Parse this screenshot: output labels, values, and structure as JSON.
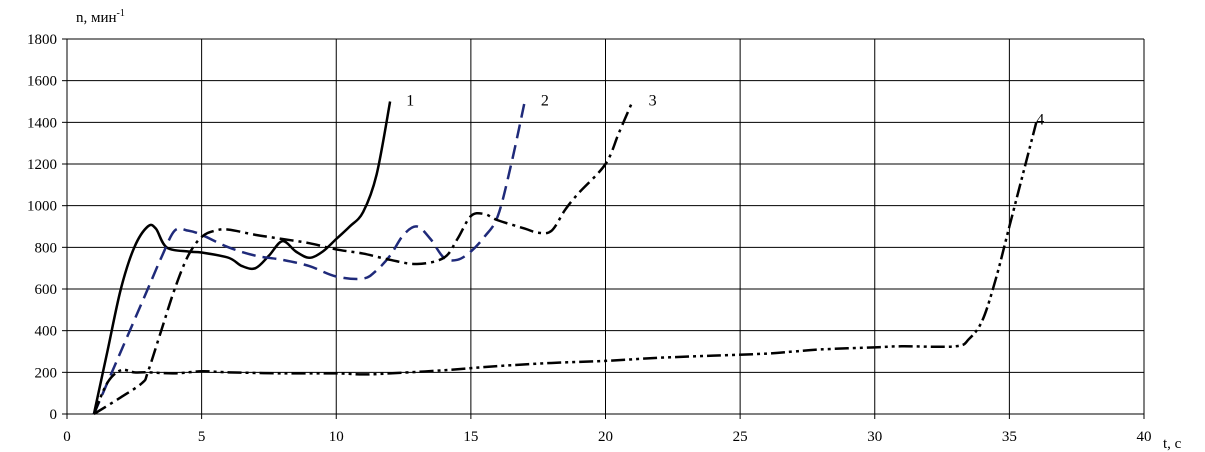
{
  "chart_data": {
    "type": "line",
    "xlabel": "t, с",
    "ylabel": "n, мин",
    "ylabel_exponent": "-1",
    "xlim": [
      0,
      40
    ],
    "ylim": [
      0,
      1800
    ],
    "x_ticks": [
      0,
      5,
      10,
      15,
      20,
      25,
      30,
      35,
      40
    ],
    "y_ticks": [
      0,
      200,
      400,
      600,
      800,
      1000,
      1200,
      1400,
      1600,
      1800
    ],
    "x_tick_labels": [
      "0",
      "5",
      "10",
      "15",
      "20",
      "25",
      "30",
      "35",
      "40"
    ],
    "y_tick_labels": [
      "0",
      "200",
      "400",
      "600",
      "800",
      "1000",
      "1200",
      "1400",
      "1600",
      "1800"
    ],
    "grid": true,
    "series": [
      {
        "name": "1",
        "color": "#000000",
        "dash": "solid",
        "points": [
          [
            1,
            0
          ],
          [
            1.5,
            300
          ],
          [
            2,
            600
          ],
          [
            2.5,
            800
          ],
          [
            3,
            900
          ],
          [
            3.3,
            890
          ],
          [
            3.7,
            800
          ],
          [
            4.5,
            780
          ],
          [
            5,
            775
          ],
          [
            6,
            750
          ],
          [
            6.5,
            710
          ],
          [
            7,
            700
          ],
          [
            7.5,
            760
          ],
          [
            8,
            830
          ],
          [
            8.5,
            780
          ],
          [
            9,
            750
          ],
          [
            9.5,
            780
          ],
          [
            10,
            840
          ],
          [
            10.5,
            900
          ],
          [
            11,
            970
          ],
          [
            11.5,
            1150
          ],
          [
            12,
            1500
          ]
        ]
      },
      {
        "name": "2",
        "color": "#1f2a7a",
        "dash": "dash",
        "points": [
          [
            1,
            0
          ],
          [
            2,
            300
          ],
          [
            3,
            600
          ],
          [
            3.5,
            750
          ],
          [
            4,
            880
          ],
          [
            4.5,
            880
          ],
          [
            5,
            860
          ],
          [
            6,
            800
          ],
          [
            7,
            760
          ],
          [
            8,
            740
          ],
          [
            9,
            710
          ],
          [
            10,
            660
          ],
          [
            11,
            650
          ],
          [
            11.5,
            690
          ],
          [
            12,
            760
          ],
          [
            12.5,
            860
          ],
          [
            13,
            900
          ],
          [
            13.5,
            840
          ],
          [
            14,
            750
          ],
          [
            14.5,
            740
          ],
          [
            15,
            780
          ],
          [
            15.5,
            850
          ],
          [
            16,
            950
          ],
          [
            16.5,
            1200
          ],
          [
            17,
            1500
          ]
        ]
      },
      {
        "name": "3",
        "color": "#000000",
        "dash": "dashdot",
        "points": [
          [
            1,
            0
          ],
          [
            2,
            80
          ],
          [
            2.8,
            150
          ],
          [
            3,
            200
          ],
          [
            3.5,
            400
          ],
          [
            4,
            600
          ],
          [
            4.5,
            760
          ],
          [
            5,
            850
          ],
          [
            5.5,
            880
          ],
          [
            6,
            885
          ],
          [
            7,
            860
          ],
          [
            8,
            840
          ],
          [
            9,
            820
          ],
          [
            10,
            790
          ],
          [
            11,
            770
          ],
          [
            12,
            740
          ],
          [
            13,
            720
          ],
          [
            14,
            750
          ],
          [
            14.5,
            840
          ],
          [
            15,
            950
          ],
          [
            15.5,
            960
          ],
          [
            16,
            930
          ],
          [
            17,
            890
          ],
          [
            17.5,
            870
          ],
          [
            18,
            880
          ],
          [
            18.5,
            980
          ],
          [
            19,
            1060
          ],
          [
            20,
            1200
          ],
          [
            20.5,
            1350
          ],
          [
            21,
            1500
          ]
        ]
      },
      {
        "name": "4",
        "color": "#000000",
        "dash": "dashdotdot",
        "points": [
          [
            1,
            0
          ],
          [
            1.5,
            150
          ],
          [
            2,
            210
          ],
          [
            2.5,
            200
          ],
          [
            3,
            200
          ],
          [
            4,
            195
          ],
          [
            5,
            205
          ],
          [
            6,
            200
          ],
          [
            8,
            195
          ],
          [
            10,
            195
          ],
          [
            11,
            190
          ],
          [
            12,
            195
          ],
          [
            14,
            210
          ],
          [
            16,
            230
          ],
          [
            18,
            245
          ],
          [
            20,
            255
          ],
          [
            22,
            270
          ],
          [
            24,
            280
          ],
          [
            26,
            290
          ],
          [
            27,
            300
          ],
          [
            28,
            310
          ],
          [
            30,
            320
          ],
          [
            31,
            325
          ],
          [
            33,
            325
          ],
          [
            33.5,
            360
          ],
          [
            34,
            450
          ],
          [
            34.5,
            650
          ],
          [
            35,
            900
          ],
          [
            35.5,
            1150
          ],
          [
            36,
            1400
          ]
        ]
      }
    ],
    "series_labels": [
      {
        "text": "1",
        "x": 12.6,
        "y": 1480
      },
      {
        "text": "2",
        "x": 17.6,
        "y": 1480
      },
      {
        "text": "3",
        "x": 21.6,
        "y": 1480
      },
      {
        "text": "4",
        "x": 36.0,
        "y": 1390
      }
    ]
  }
}
